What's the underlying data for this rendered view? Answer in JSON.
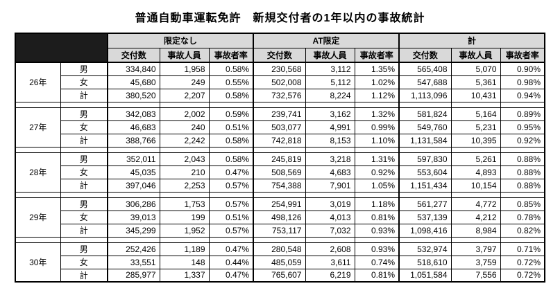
{
  "page": {
    "title": "普通自動車運転免許　新規交付者の1年以内の事故統計"
  },
  "colors": {
    "background": "#ffffff",
    "header_bg": "#d9d9d9",
    "corner_bg": "#1c1c1c",
    "border": "#000000"
  },
  "chart_data": {
    "type": "table",
    "title": "普通自動車運転免許　新規交付者の1年以内の事故統計",
    "column_groups": [
      "限定なし",
      "AT限定",
      "計"
    ],
    "sub_columns": [
      "交付数",
      "事故人員",
      "事故者率"
    ],
    "row_labels": [
      "男",
      "女",
      "計"
    ],
    "year_groups": [
      {
        "year": "26年",
        "rows": [
          {
            "label": "男",
            "values": [
              "334,840",
              "1,958",
              "0.58%",
              "230,568",
              "3,112",
              "1.35%",
              "565,408",
              "5,070",
              "0.90%"
            ]
          },
          {
            "label": "女",
            "values": [
              "45,680",
              "249",
              "0.55%",
              "502,008",
              "5,112",
              "1.02%",
              "547,688",
              "5,361",
              "0.98%"
            ]
          },
          {
            "label": "計",
            "values": [
              "380,520",
              "2,207",
              "0.58%",
              "732,576",
              "8,224",
              "1.12%",
              "1,113,096",
              "10,431",
              "0.94%"
            ]
          }
        ]
      },
      {
        "year": "27年",
        "rows": [
          {
            "label": "男",
            "values": [
              "342,083",
              "2,002",
              "0.59%",
              "239,741",
              "3,162",
              "1.32%",
              "581,824",
              "5,164",
              "0.89%"
            ]
          },
          {
            "label": "女",
            "values": [
              "46,683",
              "240",
              "0.51%",
              "503,077",
              "4,991",
              "0.99%",
              "549,760",
              "5,231",
              "0.95%"
            ]
          },
          {
            "label": "計",
            "values": [
              "388,766",
              "2,242",
              "0.58%",
              "742,818",
              "8,153",
              "1.10%",
              "1,131,584",
              "10,395",
              "0.92%"
            ]
          }
        ]
      },
      {
        "year": "28年",
        "rows": [
          {
            "label": "男",
            "values": [
              "352,011",
              "2,043",
              "0.58%",
              "245,819",
              "3,218",
              "1.31%",
              "597,830",
              "5,261",
              "0.88%"
            ]
          },
          {
            "label": "女",
            "values": [
              "45,035",
              "210",
              "0.47%",
              "508,569",
              "4,683",
              "0.92%",
              "553,604",
              "4,893",
              "0.88%"
            ]
          },
          {
            "label": "計",
            "values": [
              "397,046",
              "2,253",
              "0.57%",
              "754,388",
              "7,901",
              "1.05%",
              "1,151,434",
              "10,154",
              "0.88%"
            ]
          }
        ]
      },
      {
        "year": "29年",
        "rows": [
          {
            "label": "男",
            "values": [
              "306,286",
              "1,753",
              "0.57%",
              "254,991",
              "3,019",
              "1.18%",
              "561,277",
              "4,772",
              "0.85%"
            ]
          },
          {
            "label": "女",
            "values": [
              "39,013",
              "199",
              "0.51%",
              "498,126",
              "4,013",
              "0.81%",
              "537,139",
              "4,212",
              "0.78%"
            ]
          },
          {
            "label": "計",
            "values": [
              "345,299",
              "1,952",
              "0.57%",
              "753,117",
              "7,032",
              "0.93%",
              "1,098,416",
              "8,984",
              "0.82%"
            ]
          }
        ]
      },
      {
        "year": "30年",
        "rows": [
          {
            "label": "男",
            "values": [
              "252,426",
              "1,189",
              "0.47%",
              "280,548",
              "2,608",
              "0.93%",
              "532,974",
              "3,797",
              "0.71%"
            ]
          },
          {
            "label": "女",
            "values": [
              "33,551",
              "148",
              "0.44%",
              "485,059",
              "3,611",
              "0.74%",
              "518,610",
              "3,759",
              "0.72%"
            ]
          },
          {
            "label": "計",
            "values": [
              "285,977",
              "1,337",
              "0.47%",
              "765,607",
              "6,219",
              "0.81%",
              "1,051,584",
              "7,556",
              "0.72%"
            ]
          }
        ]
      }
    ]
  }
}
